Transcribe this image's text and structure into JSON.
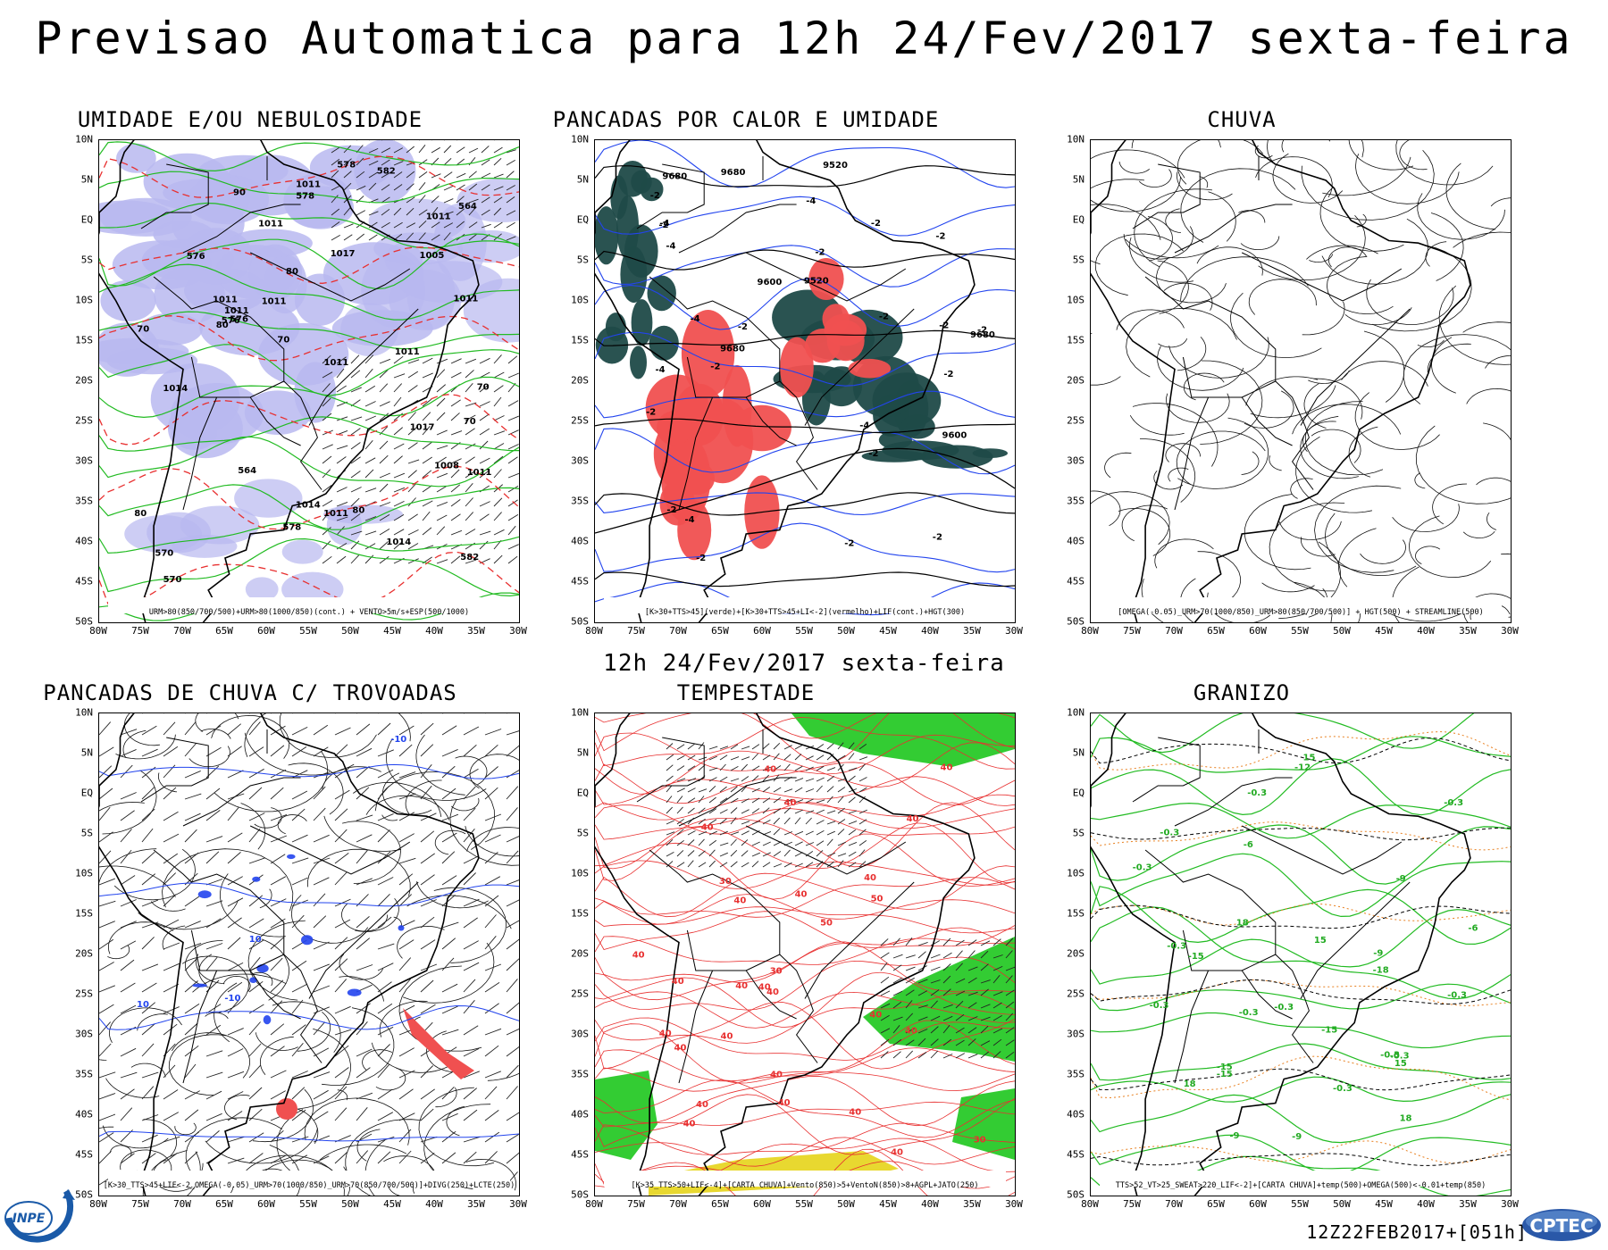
{
  "title": "Previsao Automatica  para 12h 24/Fev/2017 sexta-feira",
  "subtitle": "12h 24/Fev/2017 sexta-feira",
  "footer_stamp": "12Z22FEB2017+[051h]",
  "logos": {
    "left": "INPE",
    "right": "CPTEC"
  },
  "lat_labels": [
    "10N",
    "5N",
    "EQ",
    "5S",
    "10S",
    "15S",
    "20S",
    "25S",
    "30S",
    "35S",
    "40S",
    "45S",
    "50S"
  ],
  "lon_labels": [
    "80W",
    "75W",
    "70W",
    "65W",
    "60W",
    "55W",
    "50W",
    "45W",
    "40W",
    "35W",
    "30W"
  ],
  "colors": {
    "humidity_fill": "#b8b8f0",
    "green_contour": "#22bb22",
    "red_contour": "#e83030",
    "blue_contour": "#2244ee",
    "dark_teal_fill": "#1f4a48",
    "red_fill": "#f05050",
    "green_fill": "#33cc33",
    "yellow_fill": "#e8d830",
    "orange_contour": "#e88020"
  },
  "panels": [
    {
      "title": "UMIDADE E/OU NEBULOSIDADE",
      "caption": "URM>80(850/700/500)+URM>80(1000/850)(cont.) + VENTO>5m/s+ESP(500/1000)",
      "labels": [
        "1011",
        "576",
        "70",
        "80",
        "1011",
        "576",
        "90",
        "1011",
        "80",
        "1011",
        "80",
        "70",
        "1011",
        "1011",
        "578",
        "1014",
        "582",
        "1014",
        "576",
        "1005",
        "1011",
        "1011",
        "578",
        "1017",
        "570",
        "1011",
        "70",
        "564",
        "582",
        "578",
        "1008",
        "570",
        "564",
        "1011",
        "1017",
        "80",
        "1011",
        "70",
        "1014"
      ]
    },
    {
      "title": "PANCADAS POR CALOR E UMIDADE",
      "caption": "[K>30+TTS>45](verde)+[K>30+TTS>45+LI<-2](vermelho)+LIF(cont.)+HGT(300)",
      "labels": [
        "9680",
        "9680",
        "-2",
        "-2",
        "-2",
        "-2",
        "9680",
        "-2",
        "-4",
        "-2",
        "-2",
        "-4",
        "-2",
        "-4",
        "-2",
        "-2",
        "-4",
        "-2",
        "-4",
        "-2",
        "-2",
        "9680",
        "-2",
        "-4",
        "9600",
        "9520",
        "-2",
        "-4",
        "-2",
        "9600",
        "9520",
        "-2"
      ]
    },
    {
      "title": "CHUVA",
      "caption": "[OMEGA(-0.05)_URM>70(1000/850)_URM>80(850/700/500)] + HGT(500) + STREAMLINE(500)",
      "labels": []
    },
    {
      "title": "PANCADAS DE CHUVA C/ TROVOADAS",
      "caption": "[K>30_TTS>45+LIF<-2_OMEGA(-0.05)_URM>70(1000/850)_URM>70(850/700/500)]+DIVG(250)+LCTE(250)",
      "labels": [
        "-10",
        "10",
        "10",
        "-10"
      ]
    },
    {
      "title": "TEMPESTADE",
      "caption": "[K>35_TTS>50+LIF<-4]+[CARTA CHUVA]+Vento(850)>5+VentoN(850)>8+AGPL+JATO(250)",
      "labels": [
        "40",
        "40",
        "50",
        "40",
        "30",
        "30",
        "40",
        "40",
        "40",
        "40",
        "40",
        "40",
        "40",
        "40",
        "40",
        "40",
        "50",
        "40",
        "40",
        "40",
        "40",
        "40",
        "40",
        "40",
        "30",
        "40",
        "40",
        "40",
        "40"
      ]
    },
    {
      "title": "GRANIZO",
      "caption": "TTS>52_VT>25_SWEAT>220_LIF<-2]+[CARTA CHUVA]+temp(500)+OMEGA(500)<-0.01+temp(850)",
      "labels": [
        "-15",
        "-18",
        "-0.3",
        "-0.3",
        "-0.3",
        "-0.3",
        "18",
        "-6",
        "18",
        "-0.3",
        "-0.3",
        "15",
        "-0.3",
        "-0.3",
        "-9",
        "-0.3",
        "15",
        "-9",
        "15",
        "-9",
        "-0.3",
        "-6",
        "-12",
        "-9",
        "-15",
        "18",
        "-15",
        "-15",
        "-0.3",
        "-0.3"
      ]
    }
  ]
}
